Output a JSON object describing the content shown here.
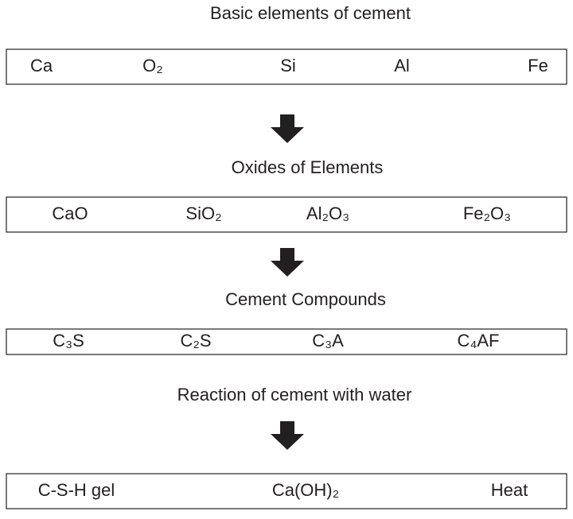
{
  "stages": [
    {
      "heading": "Basic elements of cement",
      "items": [
        "Ca",
        "O₂",
        "Si",
        "Al",
        "Fe"
      ]
    },
    {
      "heading": "Oxides of Elements",
      "items": [
        "CaO",
        "SiO₂",
        "Al₂O₃",
        "Fe₂O₃"
      ]
    },
    {
      "heading": "Cement Compounds",
      "items": [
        "C₃S",
        "C₂S",
        "C₃A",
        "C₄AF"
      ]
    },
    {
      "heading": "Reaction of cement with water",
      "items": [
        "C-S-H gel",
        "Ca(OH)₂",
        "Heat"
      ]
    }
  ]
}
